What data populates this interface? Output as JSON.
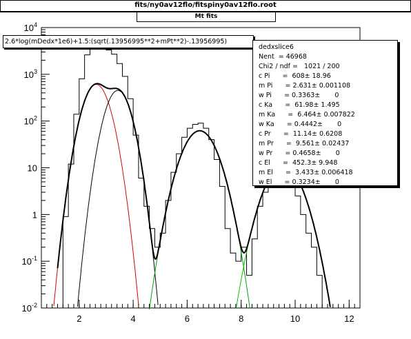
{
  "header": {
    "title": "fits/ny0av12flo/fitspiny0av12flo.root",
    "subtitle": "Mt fits"
  },
  "formula": "2.6*log(mDedx*1e6)+1.5:(sqrt(.13956995**2+mPt**2)-.13956995)",
  "stats": {
    "name": "dedxslice6",
    "rows": [
      "Nent  = 46968",
      "Chi2 / ndf =   1021 / 200",
      "c Pi      =  608± 18.96",
      "m Pi      = 2.631± 0.001108",
      "w Pi      = 0.3363±       0",
      "c Ka      =  61.98± 1.495",
      "m Ka      =  6.464± 0.007822",
      "w Ka      = 0.4442±       0",
      "c Pr      =  11.14± 0.6208",
      "m Pr      =  9.561± 0.02437",
      "w Pr      = 0.4658±       0",
      "c El      =  452.3± 9.948",
      "m El      =  3.433± 0.006418",
      "w El      = 0.3234±       0"
    ]
  },
  "colors": {
    "total": "#000000",
    "pion": "#d40000",
    "electron": "#000000",
    "kaon": "#00a000",
    "proton": "#00c000",
    "histogram": "#000000"
  },
  "chart_data": {
    "type": "line",
    "xlim": [
      0.6,
      12.4
    ],
    "ylim": [
      0.01,
      10000
    ],
    "yscale": "log",
    "x_ticks": [
      2,
      4,
      6,
      8,
      10,
      12
    ],
    "y_tick_labels": [
      "10^-2",
      "10^-1",
      "1",
      "10",
      "10^2",
      "10^3",
      "10^4"
    ],
    "components": [
      {
        "key": "pion",
        "c": 608,
        "m": 2.631,
        "w": 0.3363
      },
      {
        "key": "electron",
        "c": 452.3,
        "m": 3.433,
        "w": 0.3234
      },
      {
        "key": "kaon",
        "c": 61.98,
        "m": 6.464,
        "w": 0.4442
      },
      {
        "key": "proton",
        "c": 11.14,
        "m": 9.561,
        "w": 0.4658
      }
    ],
    "histogram": {
      "x": [
        1.5,
        1.7,
        1.9,
        2.1,
        2.3,
        2.5,
        2.7,
        2.9,
        3.1,
        3.3,
        3.5,
        3.7,
        3.9,
        4.1,
        4.3,
        4.5,
        4.7,
        4.9,
        5.1,
        5.3,
        5.5,
        5.7,
        5.9,
        6.1,
        6.3,
        6.5,
        6.7,
        6.9,
        7.1,
        7.3,
        7.5,
        7.7,
        7.9,
        8.1,
        8.3,
        8.5,
        8.7,
        8.9,
        9.1,
        9.3,
        9.5,
        9.7,
        9.9,
        10.1,
        10.3,
        10.5,
        10.7,
        10.9
      ],
      "y": [
        0.9,
        12,
        140,
        800,
        2600,
        4800,
        5300,
        4200,
        3300,
        2700,
        1700,
        900,
        300,
        50,
        6,
        1.5,
        0.5,
        0.2,
        0.4,
        2,
        8,
        20,
        45,
        70,
        85,
        90,
        70,
        40,
        15,
        4,
        0.5,
        0.15,
        0.1,
        0.2,
        0.05,
        0.3,
        1.5,
        3,
        6,
        9,
        11,
        8,
        5,
        2.5,
        1,
        0.4,
        0.2,
        0.05
      ]
    }
  }
}
